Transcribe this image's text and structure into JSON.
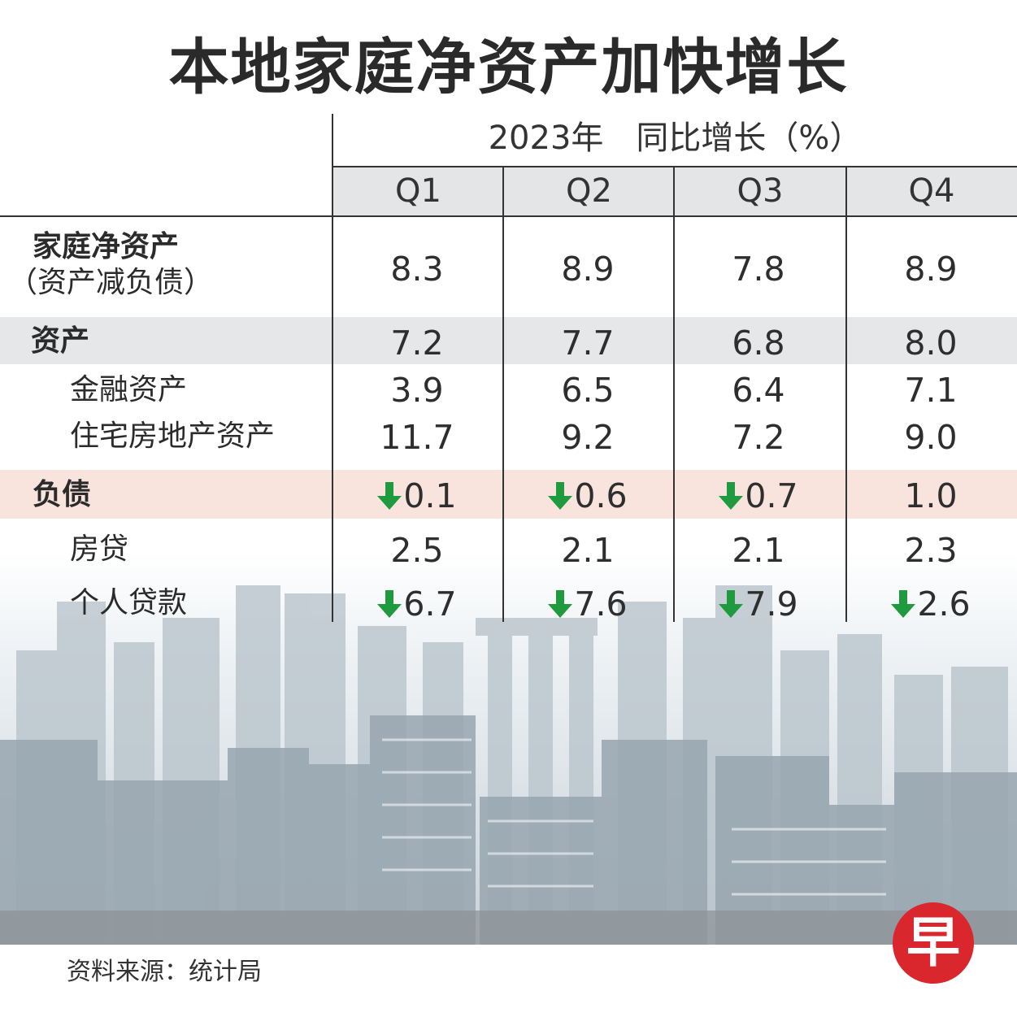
{
  "title": "本地家庭净资产加快增长",
  "chart_data": {
    "type": "table",
    "header_caption": "2023年　同比增长（%）",
    "columns": [
      "Q1",
      "Q2",
      "Q3",
      "Q4"
    ],
    "rows": [
      {
        "label_lines": [
          "家庭净资产",
          "（资产减负债）"
        ],
        "values": [
          "8.3",
          "8.9",
          "7.8",
          "8.9"
        ],
        "down": [
          false,
          false,
          false,
          false
        ]
      },
      {
        "label_lines": [
          "资产"
        ],
        "values": [
          "7.2",
          "7.7",
          "6.8",
          "8.0"
        ],
        "down": [
          false,
          false,
          false,
          false
        ]
      },
      {
        "label_lines": [
          "金融资产"
        ],
        "values": [
          "3.9",
          "6.5",
          "6.4",
          "7.1"
        ],
        "down": [
          false,
          false,
          false,
          false
        ]
      },
      {
        "label_lines": [
          "住宅房地产资产"
        ],
        "values": [
          "11.7",
          "9.2",
          "7.2",
          "9.0"
        ],
        "down": [
          false,
          false,
          false,
          false
        ]
      },
      {
        "label_lines": [
          "负债"
        ],
        "values": [
          "0.1",
          "0.6",
          "0.7",
          "1.0"
        ],
        "down": [
          true,
          true,
          true,
          false
        ]
      },
      {
        "label_lines": [
          "房贷"
        ],
        "values": [
          "2.5",
          "2.1",
          "2.1",
          "2.3"
        ],
        "down": [
          false,
          false,
          false,
          false
        ]
      },
      {
        "label_lines": [
          "个人贷款"
        ],
        "values": [
          "6.7",
          "7.6",
          "7.9",
          "2.6"
        ],
        "down": [
          true,
          true,
          true,
          true
        ]
      }
    ],
    "colors": {
      "header_band": "#e4e5e6",
      "assets_band": "#e6e7e8",
      "liabilities_band": "#f8e4dc",
      "down_arrow": "#1f9a3e"
    }
  },
  "source": "资料来源：统计局",
  "logo_char": "早"
}
